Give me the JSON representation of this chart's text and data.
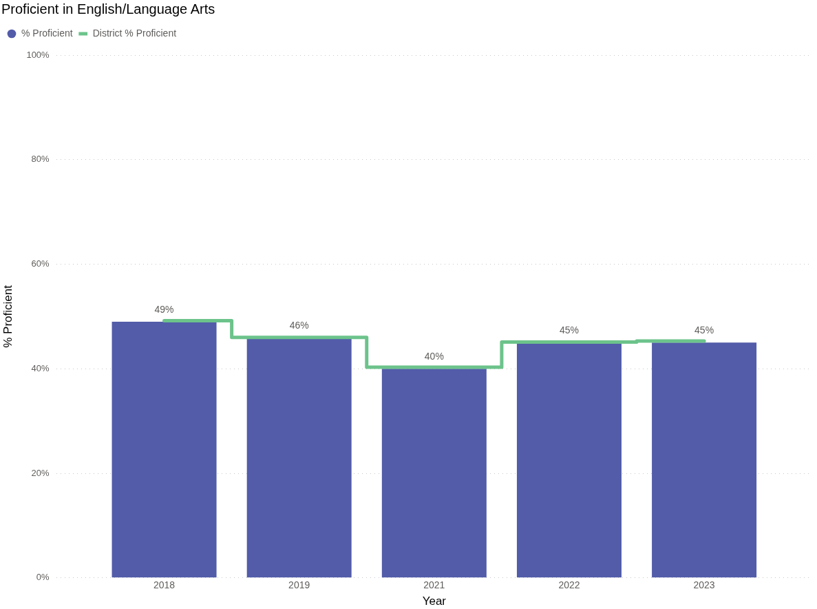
{
  "chart_data": {
    "type": "bar",
    "title": "Proficient in English/Language Arts",
    "xlabel": "Year",
    "ylabel": "% Proficient",
    "categories": [
      "2018",
      "2019",
      "2021",
      "2022",
      "2023"
    ],
    "series": [
      {
        "name": "% Proficient",
        "color": "#525ca9",
        "values": [
          49,
          46,
          40,
          45,
          45
        ],
        "value_labels": [
          "49%",
          "46%",
          "40%",
          "45%",
          "45%"
        ]
      },
      {
        "name": "District % Proficient",
        "type": "step",
        "color": "#6cc38b",
        "values": [
          49.2,
          46,
          40.3,
          45.1,
          45.3
        ]
      }
    ],
    "ylim": [
      0,
      100
    ],
    "yticks": [
      {
        "value": 0,
        "label": "0%"
      },
      {
        "value": 20,
        "label": "20%"
      },
      {
        "value": 40,
        "label": "40%"
      },
      {
        "value": 60,
        "label": "60%"
      },
      {
        "value": 80,
        "label": "80%"
      },
      {
        "value": 100,
        "label": "100%"
      }
    ],
    "grid": "y",
    "legend": "top left",
    "marker": "none"
  }
}
